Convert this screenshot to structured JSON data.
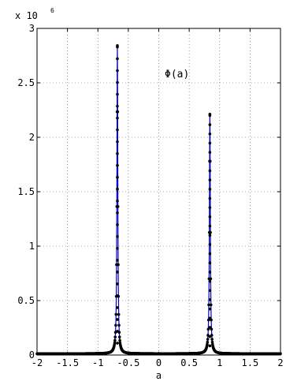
{
  "chart_data": {
    "type": "line",
    "title": "",
    "xlabel": "a",
    "ylabel": "",
    "xlim": [
      -2,
      2
    ],
    "ylim": [
      0,
      3
    ],
    "y_exponent_label": "x 10",
    "y_exponent_power": "6",
    "annotation": "Φ(a)",
    "grid": true,
    "x_ticks": [
      -2,
      -1.5,
      -1,
      -0.5,
      0,
      0.5,
      1,
      1.5,
      2
    ],
    "x_tick_labels": [
      "-2",
      "-1.5",
      "-1",
      "-0.5",
      "0",
      "0.5",
      "1",
      "1.5",
      "2"
    ],
    "y_ticks": [
      0,
      0.5,
      1,
      1.5,
      2,
      2.5,
      3
    ],
    "y_tick_labels": [
      "0",
      "0.5",
      "1",
      "1.5",
      "2",
      "2.5",
      "3"
    ],
    "series": [
      {
        "color": "#0000cc",
        "marker_color": "#000000",
        "peaks": [
          {
            "center": -0.68,
            "height": 2.83,
            "width": 0.0085
          },
          {
            "center": 0.84,
            "height": 2.2,
            "width": 0.009
          }
        ],
        "baseline": 0.012,
        "sample_x": [
          -2,
          -1.5,
          -1,
          -0.8,
          -0.7,
          -0.68,
          -0.66,
          -0.5,
          0,
          0.5,
          0.8,
          0.84,
          0.88,
          1,
          1.5,
          2
        ],
        "sample_y": [
          0.015,
          0.02,
          0.03,
          0.09,
          0.9,
          2.83,
          0.9,
          0.05,
          0.03,
          0.05,
          0.12,
          2.2,
          0.12,
          0.08,
          0.04,
          0.03
        ]
      }
    ]
  }
}
